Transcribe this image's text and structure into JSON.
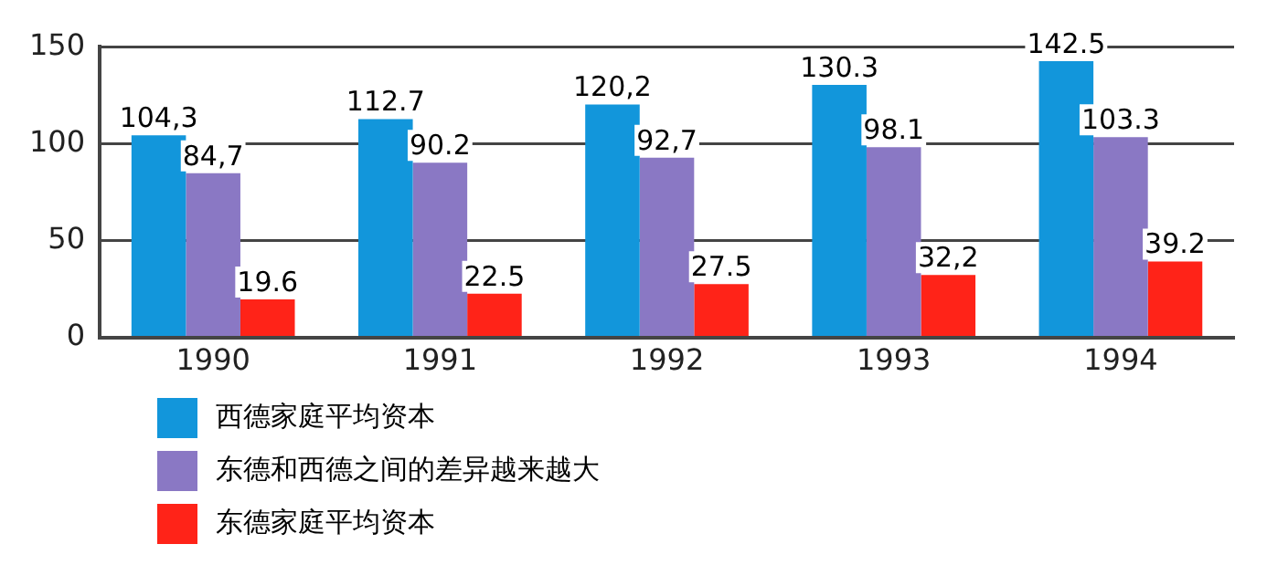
{
  "chart_data": {
    "type": "bar",
    "categories": [
      "1990",
      "1991",
      "1992",
      "1993",
      "1994"
    ],
    "series": [
      {
        "name": "西德家庭平均资本",
        "color": "#1296db",
        "values": [
          104.3,
          112.7,
          120.2,
          130.3,
          142.5
        ],
        "value_labels": [
          "104,3",
          "112.7",
          "120,2",
          "130.3",
          "142.5"
        ]
      },
      {
        "name": "东德和西德之间的差异越来越大",
        "color": "#8a78c4",
        "values": [
          84.7,
          90.2,
          92.7,
          98.1,
          103.3
        ],
        "value_labels": [
          "84,7",
          "90.2",
          "92,7",
          "98.1",
          "103.3"
        ]
      },
      {
        "name": "东德家庭平均资本",
        "color": "#ff2318",
        "values": [
          19.6,
          22.5,
          27.5,
          32.2,
          39.2
        ],
        "value_labels": [
          "19.6",
          "22.5",
          "27.5",
          "32,2",
          "39.2"
        ]
      }
    ],
    "ylim": [
      0,
      150
    ],
    "yticks": [
      0,
      50,
      100,
      150
    ],
    "grid": "y",
    "legend": "bottom"
  }
}
